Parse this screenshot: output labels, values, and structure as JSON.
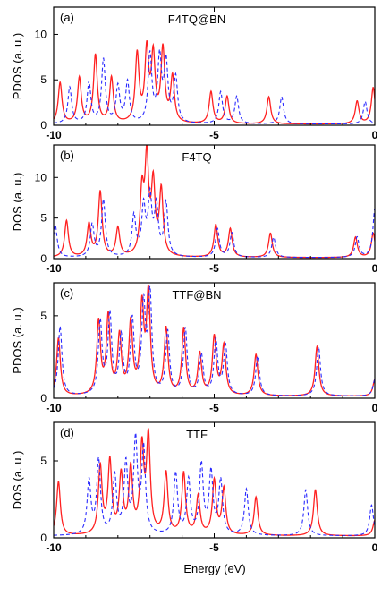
{
  "xlabel": "Energy (eV)",
  "colors": {
    "series_a": "#ff2020",
    "series_b": "#2a2aff"
  },
  "chart_data": [
    {
      "type": "line",
      "panel_label": "(a)",
      "title": "F4TQ@BN",
      "ylabel": "PDOS (a. u.)",
      "xlim": [
        -10,
        0
      ],
      "ylim": [
        0,
        13
      ],
      "xticks": [
        "-10",
        "-5",
        "0"
      ],
      "xtick_values": [
        -10,
        -5,
        0
      ],
      "yticks": [
        "0",
        "5",
        "10"
      ],
      "ytick_values": [
        0,
        5,
        10
      ],
      "series": [
        {
          "style": "solid",
          "color": "#ff2020",
          "peaks": [
            [
              -9.8,
              4.5
            ],
            [
              -9.2,
              5
            ],
            [
              -8.7,
              7.5
            ],
            [
              -8.2,
              5
            ],
            [
              -7.4,
              7.5
            ],
            [
              -7.1,
              7.8
            ],
            [
              -6.9,
              7.2
            ],
            [
              -6.6,
              8
            ],
            [
              -6.3,
              5
            ],
            [
              -5.1,
              3.5
            ],
            [
              -4.6,
              3
            ],
            [
              -3.3,
              3
            ],
            [
              -0.55,
              2.5
            ],
            [
              -0.05,
              4
            ]
          ]
        },
        {
          "style": "dashed",
          "color": "#2a2aff",
          "peaks": [
            [
              -9.5,
              4
            ],
            [
              -8.9,
              4.5
            ],
            [
              -8.45,
              7
            ],
            [
              -8.0,
              4
            ],
            [
              -7.7,
              4.5
            ],
            [
              -7.0,
              7.5
            ],
            [
              -6.7,
              7
            ],
            [
              -6.5,
              6.5
            ],
            [
              -6.2,
              5
            ],
            [
              -4.8,
              3.5
            ],
            [
              -4.3,
              3
            ],
            [
              -2.9,
              3
            ],
            [
              -0.3,
              2.5
            ]
          ]
        }
      ]
    },
    {
      "type": "line",
      "panel_label": "(b)",
      "title": "F4TQ",
      "ylabel": "DOS (a. u.)",
      "xlim": [
        -10,
        0
      ],
      "ylim": [
        0,
        14
      ],
      "xticks": [
        "-10",
        "-5",
        "0"
      ],
      "xtick_values": [
        -10,
        -5,
        0
      ],
      "yticks": [
        "0",
        "5",
        "10"
      ],
      "ytick_values": [
        0,
        5,
        10
      ],
      "series": [
        {
          "style": "solid",
          "color": "#ff2020",
          "peaks": [
            [
              -9.6,
              4.5
            ],
            [
              -8.9,
              4
            ],
            [
              -8.55,
              8
            ],
            [
              -8.0,
              3.5
            ],
            [
              -7.25,
              7.5
            ],
            [
              -7.1,
              11.5
            ],
            [
              -6.9,
              8.5
            ],
            [
              -6.65,
              8
            ],
            [
              -4.95,
              4
            ],
            [
              -4.5,
              3.5
            ],
            [
              -3.25,
              3
            ],
            [
              -0.6,
              2.5
            ],
            [
              -0.05,
              3
            ]
          ]
        },
        {
          "style": "dashed",
          "color": "#2a2aff",
          "peaks": [
            [
              -9.95,
              4
            ],
            [
              -8.8,
              4
            ],
            [
              -8.45,
              7
            ],
            [
              -7.5,
              5
            ],
            [
              -7.2,
              6
            ],
            [
              -7.0,
              7
            ],
            [
              -6.8,
              6
            ],
            [
              -6.5,
              6.5
            ],
            [
              -4.9,
              3.5
            ],
            [
              -4.45,
              3
            ],
            [
              -3.15,
              2.5
            ],
            [
              -0.55,
              2.5
            ],
            [
              0.0,
              6
            ]
          ]
        }
      ]
    },
    {
      "type": "line",
      "panel_label": "(c)",
      "title": "TTF@BN",
      "ylabel": "PDOS (a. u.)",
      "xlim": [
        -10,
        0
      ],
      "ylim": [
        0,
        7
      ],
      "xticks": [
        "-10",
        "-5",
        "0"
      ],
      "xtick_values": [
        -10,
        -5,
        0
      ],
      "yticks": [
        "0",
        "5"
      ],
      "ytick_values": [
        0,
        5
      ],
      "series": [
        {
          "style": "solid",
          "color": "#ff2020",
          "peaks": [
            [
              -9.85,
              3.5
            ],
            [
              -8.6,
              4.4
            ],
            [
              -8.3,
              4.7
            ],
            [
              -7.95,
              3.5
            ],
            [
              -7.6,
              4.3
            ],
            [
              -7.25,
              5.2
            ],
            [
              -7.05,
              6
            ],
            [
              -6.5,
              4
            ],
            [
              -5.95,
              4
            ],
            [
              -5.45,
              2.5
            ],
            [
              -5.0,
              3.5
            ],
            [
              -4.7,
              3
            ],
            [
              -3.7,
              2.5
            ],
            [
              -1.8,
              3
            ],
            [
              0.0,
              1
            ]
          ]
        },
        {
          "style": "dashed",
          "color": "#2a2aff",
          "peaks": [
            [
              -9.8,
              4.2
            ],
            [
              -8.55,
              4.4
            ],
            [
              -8.25,
              4.8
            ],
            [
              -7.9,
              3.4
            ],
            [
              -7.55,
              4.4
            ],
            [
              -7.2,
              5.3
            ],
            [
              -7.0,
              5.9
            ],
            [
              -6.45,
              3.8
            ],
            [
              -5.9,
              4
            ],
            [
              -5.4,
              2.4
            ],
            [
              -4.95,
              3.3
            ],
            [
              -4.65,
              3
            ],
            [
              -3.65,
              2.4
            ],
            [
              -1.75,
              3
            ],
            [
              0.0,
              1
            ]
          ]
        }
      ]
    },
    {
      "type": "line",
      "panel_label": "(d)",
      "title": "TTF",
      "ylabel": "DOS (a. u.)",
      "xlim": [
        -10,
        0
      ],
      "ylim": [
        0,
        7.5
      ],
      "xticks": [
        "-10",
        "-5",
        "0"
      ],
      "xtick_values": [
        -10,
        -5,
        0
      ],
      "yticks": [
        "0",
        "5"
      ],
      "ytick_values": [
        0,
        5
      ],
      "series": [
        {
          "style": "solid",
          "color": "#ff2020",
          "peaks": [
            [
              -9.85,
              3.5
            ],
            [
              -8.55,
              4.4
            ],
            [
              -8.25,
              4.7
            ],
            [
              -7.9,
              3.8
            ],
            [
              -7.6,
              4.2
            ],
            [
              -7.25,
              5.5
            ],
            [
              -7.05,
              6.2
            ],
            [
              -6.5,
              4
            ],
            [
              -5.95,
              4
            ],
            [
              -5.5,
              2.5
            ],
            [
              -5.0,
              3.5
            ],
            [
              -4.7,
              3
            ],
            [
              -3.7,
              2.5
            ],
            [
              -1.85,
              3
            ],
            [
              0.0,
              1
            ]
          ]
        },
        {
          "style": "dashed",
          "color": "#2a2aff",
          "peaks": [
            [
              -8.9,
              3.5
            ],
            [
              -8.6,
              4.8
            ],
            [
              -8.1,
              3.8
            ],
            [
              -7.75,
              4.5
            ],
            [
              -7.45,
              6
            ],
            [
              -7.2,
              5.5
            ],
            [
              -6.2,
              4
            ],
            [
              -5.8,
              3.5
            ],
            [
              -5.4,
              4.5
            ],
            [
              -5.1,
              4
            ],
            [
              -4.8,
              3.5
            ],
            [
              -4.0,
              3
            ],
            [
              -2.15,
              3
            ],
            [
              -0.1,
              2
            ]
          ]
        }
      ]
    }
  ]
}
